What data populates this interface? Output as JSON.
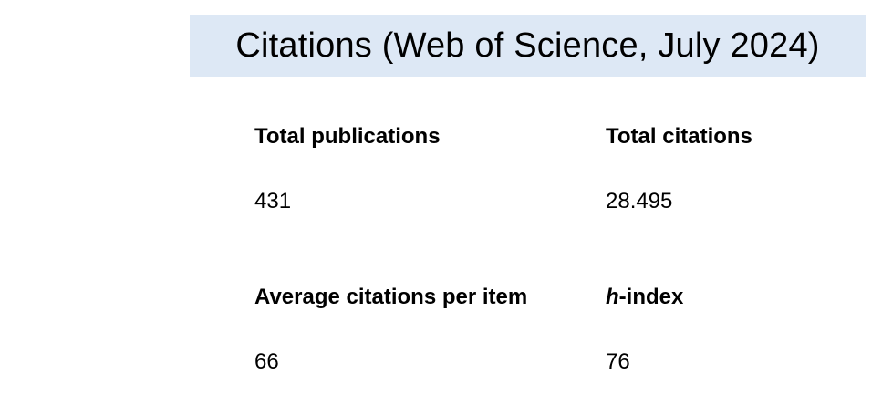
{
  "title": "Citations (Web of Science, July 2024)",
  "stats": {
    "total_publications": {
      "label": "Total publications",
      "value": "431"
    },
    "total_citations": {
      "label": "Total citations",
      "value": "28.495"
    },
    "average_citations": {
      "label": "Average citations per item",
      "value": "66"
    },
    "h_index": {
      "label_italic": "h",
      "label_rest": "-index",
      "value": "76"
    }
  },
  "colors": {
    "title_band": "#dde8f5"
  }
}
